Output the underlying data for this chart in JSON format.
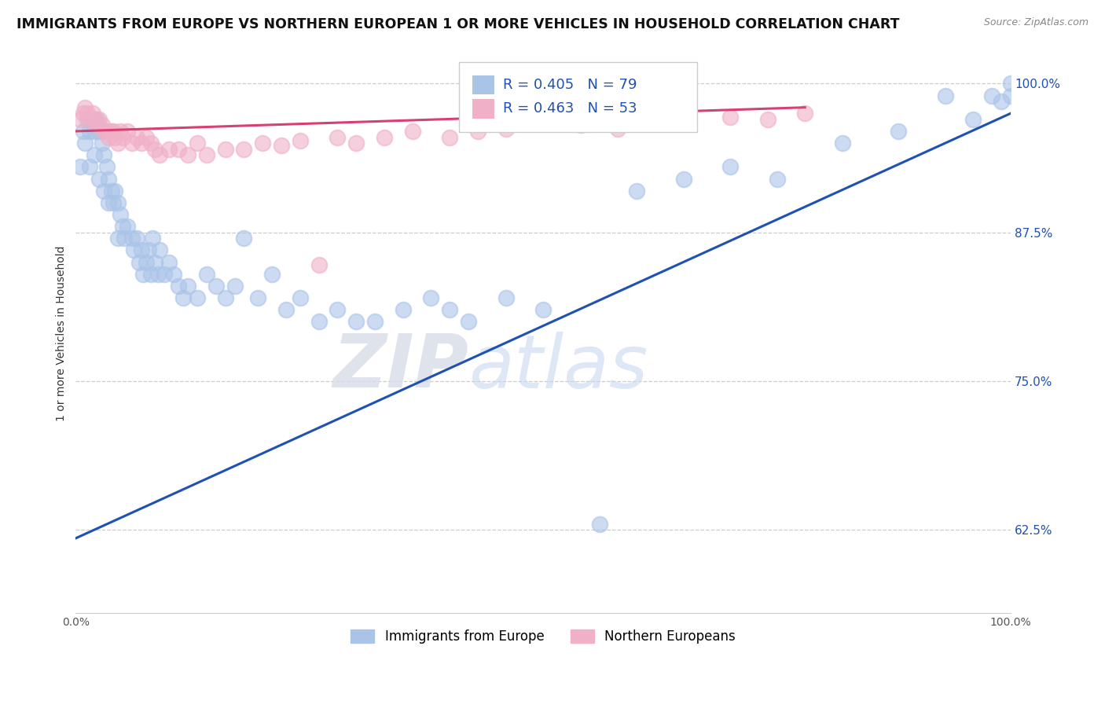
{
  "title": "IMMIGRANTS FROM EUROPE VS NORTHERN EUROPEAN 1 OR MORE VEHICLES IN HOUSEHOLD CORRELATION CHART",
  "source": "Source: ZipAtlas.com",
  "ylabel": "1 or more Vehicles in Household",
  "watermark_zip": "ZIP",
  "watermark_atlas": "atlas",
  "xlim": [
    0.0,
    1.0
  ],
  "ylim": [
    0.555,
    1.025
  ],
  "x_ticks": [
    0.0,
    0.1,
    0.2,
    0.3,
    0.4,
    0.5,
    0.6,
    0.7,
    0.8,
    0.9,
    1.0
  ],
  "y_ticks": [
    0.625,
    0.75,
    0.875,
    1.0
  ],
  "y_tick_labels": [
    "62.5%",
    "75.0%",
    "87.5%",
    "100.0%"
  ],
  "blue_R": 0.405,
  "blue_N": 79,
  "pink_R": 0.463,
  "pink_N": 53,
  "blue_color": "#aac4e8",
  "pink_color": "#f0b0c8",
  "blue_line_color": "#2050b0",
  "pink_line_color": "#d84070",
  "legend_blue_label": "Immigrants from Europe",
  "legend_pink_label": "Northern Europeans",
  "blue_scatter_x": [
    0.005,
    0.008,
    0.01,
    0.012,
    0.015,
    0.015,
    0.018,
    0.02,
    0.02,
    0.022,
    0.025,
    0.025,
    0.028,
    0.03,
    0.03,
    0.033,
    0.035,
    0.035,
    0.038,
    0.04,
    0.042,
    0.045,
    0.045,
    0.048,
    0.05,
    0.052,
    0.055,
    0.06,
    0.062,
    0.065,
    0.068,
    0.07,
    0.072,
    0.075,
    0.078,
    0.08,
    0.082,
    0.085,
    0.088,
    0.09,
    0.095,
    0.1,
    0.105,
    0.11,
    0.115,
    0.12,
    0.13,
    0.14,
    0.15,
    0.16,
    0.17,
    0.18,
    0.195,
    0.21,
    0.225,
    0.24,
    0.26,
    0.28,
    0.3,
    0.32,
    0.35,
    0.38,
    0.4,
    0.42,
    0.46,
    0.5,
    0.56,
    0.6,
    0.65,
    0.7,
    0.75,
    0.82,
    0.88,
    0.93,
    0.96,
    0.98,
    0.99,
    1.0,
    1.0
  ],
  "blue_scatter_y": [
    0.93,
    0.96,
    0.95,
    0.97,
    0.96,
    0.93,
    0.97,
    0.96,
    0.94,
    0.97,
    0.96,
    0.92,
    0.95,
    0.94,
    0.91,
    0.93,
    0.92,
    0.9,
    0.91,
    0.9,
    0.91,
    0.9,
    0.87,
    0.89,
    0.88,
    0.87,
    0.88,
    0.87,
    0.86,
    0.87,
    0.85,
    0.86,
    0.84,
    0.85,
    0.86,
    0.84,
    0.87,
    0.85,
    0.84,
    0.86,
    0.84,
    0.85,
    0.84,
    0.83,
    0.82,
    0.83,
    0.82,
    0.84,
    0.83,
    0.82,
    0.83,
    0.87,
    0.82,
    0.84,
    0.81,
    0.82,
    0.8,
    0.81,
    0.8,
    0.8,
    0.81,
    0.82,
    0.81,
    0.8,
    0.82,
    0.81,
    0.63,
    0.91,
    0.92,
    0.93,
    0.92,
    0.95,
    0.96,
    0.99,
    0.97,
    0.99,
    0.985,
    0.99,
    1.0
  ],
  "pink_scatter_x": [
    0.005,
    0.008,
    0.01,
    0.012,
    0.015,
    0.018,
    0.02,
    0.022,
    0.025,
    0.028,
    0.03,
    0.033,
    0.035,
    0.038,
    0.04,
    0.042,
    0.045,
    0.048,
    0.05,
    0.055,
    0.06,
    0.065,
    0.07,
    0.075,
    0.08,
    0.085,
    0.09,
    0.1,
    0.11,
    0.12,
    0.13,
    0.14,
    0.16,
    0.18,
    0.2,
    0.22,
    0.24,
    0.26,
    0.28,
    0.3,
    0.33,
    0.36,
    0.4,
    0.43,
    0.46,
    0.5,
    0.54,
    0.58,
    0.62,
    0.65,
    0.7,
    0.74,
    0.78
  ],
  "pink_scatter_y": [
    0.97,
    0.975,
    0.98,
    0.975,
    0.97,
    0.975,
    0.97,
    0.965,
    0.97,
    0.965,
    0.96,
    0.96,
    0.955,
    0.96,
    0.96,
    0.955,
    0.95,
    0.96,
    0.955,
    0.96,
    0.95,
    0.955,
    0.95,
    0.955,
    0.95,
    0.945,
    0.94,
    0.945,
    0.945,
    0.94,
    0.95,
    0.94,
    0.945,
    0.945,
    0.95,
    0.948,
    0.952,
    0.848,
    0.955,
    0.95,
    0.955,
    0.96,
    0.955,
    0.96,
    0.962,
    0.968,
    0.965,
    0.962,
    0.97,
    0.968,
    0.972,
    0.97,
    0.975
  ],
  "blue_line_x": [
    0.0,
    1.0
  ],
  "blue_line_y": [
    0.618,
    0.975
  ],
  "pink_line_x": [
    0.0,
    0.78
  ],
  "pink_line_y": [
    0.96,
    0.98
  ],
  "background_color": "#ffffff",
  "grid_color": "#cccccc",
  "title_fontsize": 12.5,
  "axis_label_fontsize": 10,
  "tick_fontsize": 10,
  "legend_fontsize": 12,
  "R_label_fontsize": 13
}
